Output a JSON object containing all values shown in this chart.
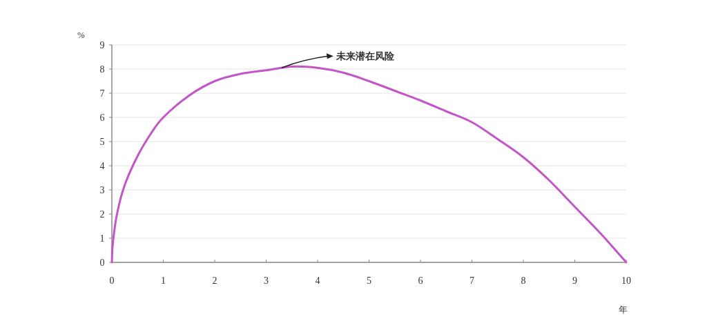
{
  "chart_data": {
    "type": "line",
    "xlabel": "年",
    "ylabel": "%",
    "x": [
      0,
      0.02,
      0.1,
      0.25,
      0.5,
      0.75,
      1,
      1.5,
      2,
      2.5,
      3,
      3.5,
      4,
      4.5,
      5,
      5.5,
      6,
      6.5,
      7,
      7.5,
      8,
      8.5,
      9,
      9.5,
      10
    ],
    "series": [
      {
        "color": "#c355c8",
        "values": [
          0,
          0.8,
          2.0,
          3.2,
          4.4,
          5.3,
          6.0,
          6.9,
          7.5,
          7.8,
          7.95,
          8.1,
          8.05,
          7.85,
          7.5,
          7.1,
          6.7,
          6.25,
          5.8,
          5.1,
          4.35,
          3.4,
          2.3,
          1.2,
          0
        ]
      }
    ],
    "xlim": [
      0,
      10
    ],
    "xticks": [
      0,
      1,
      2,
      3,
      4,
      5,
      6,
      7,
      8,
      9,
      10
    ],
    "ylim": [
      0,
      9
    ],
    "yticks": [
      0,
      1,
      2,
      3,
      4,
      5,
      6,
      7,
      8,
      9
    ],
    "grid": "y",
    "line_style": "solid",
    "marker": "none",
    "annotations": [
      {
        "text": "未来潜在风险",
        "x": 3.3,
        "y": 8.05
      }
    ]
  }
}
